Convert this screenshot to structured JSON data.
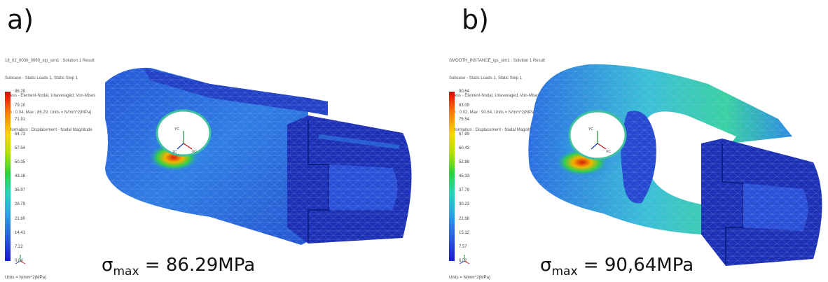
{
  "panels": [
    {
      "label": "a)",
      "header": [
        "18_02_0030_0060_stp_sim1 : Solution 1 Result",
        "Subcase - Static Loads 1, Static Step 1",
        "Stress - Element-Nodal, Unaveraged, Von-Mises",
        "Min : 0.04, Max : 86.29, Units = N/mm^2(MPa)",
        "Deformation : Displacement - Nodal Magnitude"
      ],
      "legend_ticks": [
        "86.29",
        "79.10",
        "71.91",
        "64.73",
        "57.54",
        "50.35",
        "43.16",
        "35.97",
        "28.79",
        "21.60",
        "14.41",
        "7.22",
        "0.04"
      ],
      "legend_units": "Units = N/mm^2(MPa)",
      "sigma_symbol": "σ",
      "sigma_sub": "max",
      "sigma_value": " = 86.29MPa",
      "axis_labels": [
        "YC",
        "XC",
        "ZC"
      ]
    },
    {
      "label": "b)",
      "header": [
        "SMOOTH_INSTANCE_igs_sim1 : Solution 1 Result",
        "Subcase - Static Loads 1, Static Step 1",
        "Stress - Element-Nodal, Unaveraged, Von-Mises",
        "Min : 0.02, Max : 90.64, Units = N/mm^2(MPa)",
        "Deformation : Displacement - Nodal Magnitude"
      ],
      "legend_ticks": [
        "90.64",
        "83.09",
        "75.54",
        "67.99",
        "60.43",
        "52.88",
        "45.33",
        "37.78",
        "30.23",
        "22.68",
        "15.12",
        "7.57",
        "0.02"
      ],
      "legend_units": "Units = N/mm^2(MPa)",
      "sigma_symbol": "σ",
      "sigma_sub": "max",
      "sigma_value": " = 90,64MPa",
      "axis_labels": [
        "YC",
        "XC"
      ]
    }
  ],
  "colors": {
    "mesh_dark": "#1b2fb8",
    "mesh_mid": "#2e6fe0",
    "mesh_light": "#3aa6e8",
    "hot": "#e02a10",
    "warm": "#f2c400",
    "green": "#36d24a"
  }
}
